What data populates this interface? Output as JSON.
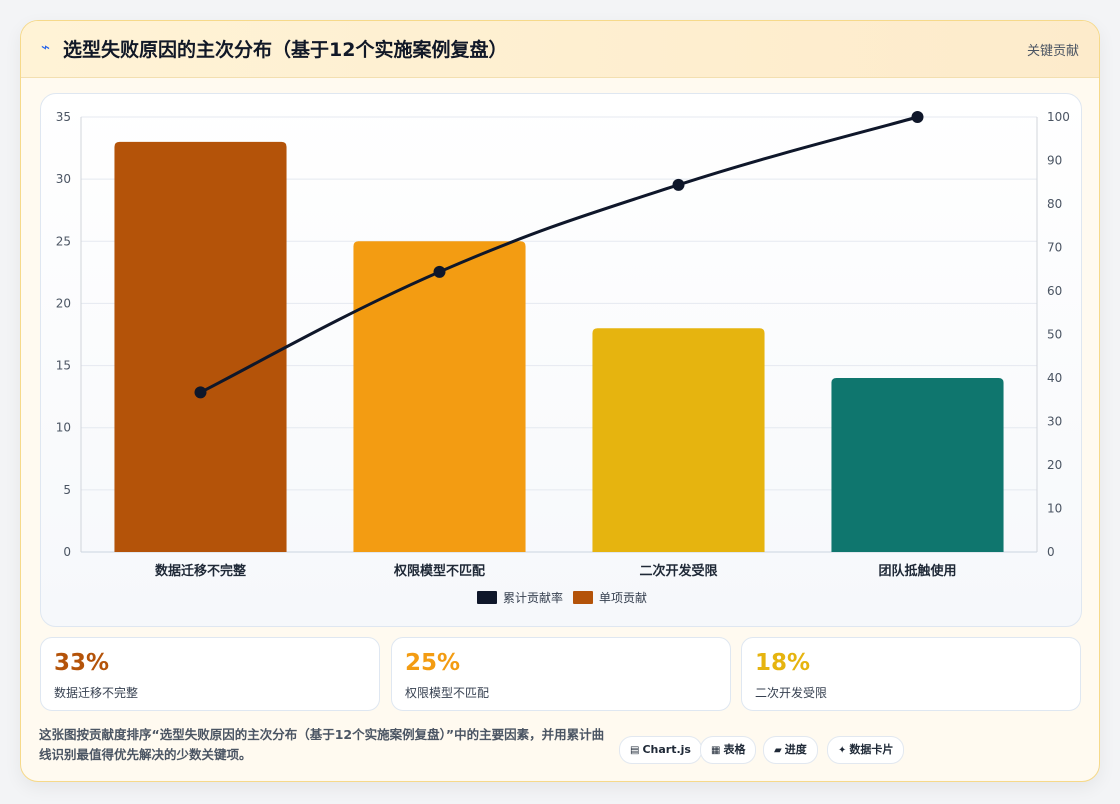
{
  "header": {
    "icon": "lightning-icon",
    "title": "选型失败原因的主次分布（基于12个实施案例复盘）",
    "tag": "关键贡献"
  },
  "chart_data": {
    "type": "bar",
    "categories": [
      "数据迁移不完整",
      "权限模型不匹配",
      "二次开发受限",
      "团队抵触使用"
    ],
    "series": [
      {
        "name": "单项贡献",
        "type": "bar",
        "axis": "left",
        "values": [
          33,
          25,
          18,
          14
        ],
        "colors": [
          "#b45309",
          "#f39c12",
          "#e6b40f",
          "#0f766e"
        ]
      },
      {
        "name": "累计贡献率",
        "type": "line",
        "axis": "right",
        "values": [
          36.7,
          64.4,
          84.4,
          100
        ],
        "color": "#0f172a"
      }
    ],
    "y_left": {
      "min": 0,
      "max": 35,
      "ticks": [
        0,
        5,
        10,
        15,
        20,
        25,
        30,
        35
      ]
    },
    "y_right": {
      "min": 0,
      "max": 100,
      "ticks": [
        0,
        10,
        20,
        30,
        40,
        50,
        60,
        70,
        80,
        90,
        100
      ]
    },
    "grid": true,
    "legend_position": "bottom"
  },
  "stats": [
    {
      "value": "33%",
      "label": "数据迁移不完整",
      "color": "#b45309"
    },
    {
      "value": "25%",
      "label": "权限模型不匹配",
      "color": "#f39c12"
    },
    {
      "value": "18%",
      "label": "二次开发受限",
      "color": "#e6b40f"
    }
  ],
  "description": "这张图按贡献度排序“选型失败原因的主次分布（基于12个实施案例复盘）”中的主要因素，并用累计曲线识别最值得优先解决的少数关键项。",
  "chips": [
    {
      "icon": "chart-icon",
      "glyph": "▤",
      "label": "Chart.js"
    },
    {
      "icon": "table-icon",
      "glyph": "▦",
      "label": "表格"
    },
    {
      "icon": "progress-icon",
      "glyph": "▰",
      "label": "进度"
    },
    {
      "icon": "sparkle-icon",
      "glyph": "✦",
      "label": "数据卡片"
    }
  ]
}
